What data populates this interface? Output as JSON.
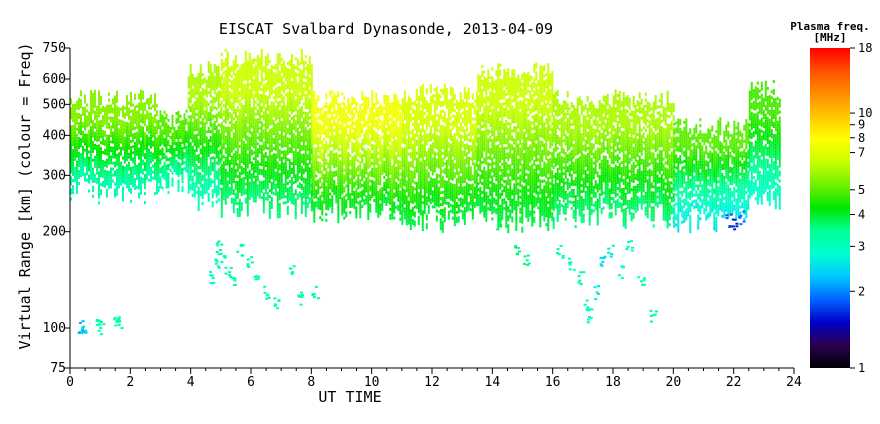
{
  "chart_data": {
    "type": "scatter",
    "title": "EISCAT Svalbard Dynasonde, 2013-04-09",
    "xlabel": "UT TIME",
    "ylabel": "Virtual Range [km] (colour = Freq)",
    "xlim": [
      0,
      24
    ],
    "ylim": [
      75,
      750
    ],
    "y_scale": "log",
    "x_ticks": [
      "0",
      "2",
      "4",
      "6",
      "8",
      "10",
      "12",
      "14",
      "16",
      "18",
      "20",
      "22",
      "24"
    ],
    "y_ticks": [
      "75",
      "100",
      "200",
      "300",
      "400",
      "500",
      "600",
      "750"
    ],
    "grid": false,
    "colorbar": {
      "label_line1": "Plasma freq.",
      "label_line2": "[MHz]",
      "range": [
        1,
        18
      ],
      "scale": "log",
      "ticks": [
        "1",
        "2",
        "3",
        "4",
        "5",
        "7",
        "8",
        "9",
        "10",
        "18"
      ],
      "stops": [
        "#000000",
        "#2a0050",
        "#0000c8",
        "#0064ff",
        "#00c8ff",
        "#00ffd2",
        "#00ff96",
        "#00e600",
        "#6ef000",
        "#c8ff00",
        "#ffff00",
        "#ffc800",
        "#ff8c00",
        "#ff5000",
        "#ff0000"
      ]
    },
    "series": [
      {
        "bands": [
          {
            "x0": 0.0,
            "x1": 2.9,
            "bottom": 270,
            "top": 520,
            "f_lo": 3.0,
            "f_hi": 5.5
          },
          {
            "x0": 2.9,
            "x1": 3.9,
            "bottom": 290,
            "top": 450,
            "f_lo": 3.0,
            "f_hi": 5.0
          },
          {
            "x0": 3.9,
            "x1": 5.0,
            "bottom": 255,
            "top": 640,
            "f_lo": 3.0,
            "f_hi": 6.0
          },
          {
            "x0": 5.0,
            "x1": 8.0,
            "bottom": 240,
            "top": 700,
            "f_lo": 3.5,
            "f_hi": 6.5
          },
          {
            "x0": 8.0,
            "x1": 11.0,
            "bottom": 230,
            "top": 520,
            "f_lo": 3.8,
            "f_hi": 7.5
          },
          {
            "x0": 11.0,
            "x1": 13.5,
            "bottom": 220,
            "top": 540,
            "f_lo": 3.8,
            "f_hi": 6.8
          },
          {
            "x0": 13.5,
            "x1": 16.0,
            "bottom": 220,
            "top": 630,
            "f_lo": 3.8,
            "f_hi": 6.5
          },
          {
            "x0": 16.0,
            "x1": 20.0,
            "bottom": 225,
            "top": 520,
            "f_lo": 3.5,
            "f_hi": 6.0
          },
          {
            "x0": 20.0,
            "x1": 22.5,
            "bottom": 220,
            "top": 430,
            "f_lo": 2.5,
            "f_hi": 5.0
          },
          {
            "x0": 22.5,
            "x1": 23.5,
            "bottom": 250,
            "top": 560,
            "f_lo": 2.8,
            "f_hi": 4.8
          }
        ]
      },
      {
        "points": [
          {
            "x": 0.3,
            "y": 102,
            "f": 2.2
          },
          {
            "x": 0.4,
            "y": 100,
            "f": 2.4
          },
          {
            "x": 0.9,
            "y": 103,
            "f": 3.0
          },
          {
            "x": 1.0,
            "y": 101,
            "f": 3.2
          },
          {
            "x": 1.5,
            "y": 104,
            "f": 3.0
          },
          {
            "x": 1.6,
            "y": 102,
            "f": 3.2
          },
          {
            "x": 4.7,
            "y": 145,
            "f": 3.0
          },
          {
            "x": 4.8,
            "y": 160,
            "f": 3.1
          },
          {
            "x": 4.9,
            "y": 180,
            "f": 3.2
          },
          {
            "x": 5.0,
            "y": 170,
            "f": 3.0
          },
          {
            "x": 5.2,
            "y": 150,
            "f": 3.3
          },
          {
            "x": 5.4,
            "y": 140,
            "f": 3.0
          },
          {
            "x": 5.6,
            "y": 175,
            "f": 3.2
          },
          {
            "x": 5.9,
            "y": 160,
            "f": 3.3
          },
          {
            "x": 6.1,
            "y": 140,
            "f": 3.0
          },
          {
            "x": 6.5,
            "y": 130,
            "f": 3.1
          },
          {
            "x": 6.8,
            "y": 120,
            "f": 3.2
          },
          {
            "x": 7.3,
            "y": 150,
            "f": 3.1
          },
          {
            "x": 7.6,
            "y": 125,
            "f": 3.2
          },
          {
            "x": 8.1,
            "y": 130,
            "f": 3.3
          },
          {
            "x": 14.2,
            "y": 210,
            "f": 3.8
          },
          {
            "x": 14.8,
            "y": 175,
            "f": 3.6
          },
          {
            "x": 15.1,
            "y": 165,
            "f": 3.5
          },
          {
            "x": 16.2,
            "y": 175,
            "f": 3.0
          },
          {
            "x": 16.6,
            "y": 160,
            "f": 3.1
          },
          {
            "x": 16.9,
            "y": 145,
            "f": 3.2
          },
          {
            "x": 17.1,
            "y": 120,
            "f": 3.0
          },
          {
            "x": 17.2,
            "y": 110,
            "f": 3.0
          },
          {
            "x": 17.4,
            "y": 130,
            "f": 2.6
          },
          {
            "x": 17.6,
            "y": 160,
            "f": 2.4
          },
          {
            "x": 17.9,
            "y": 175,
            "f": 2.6
          },
          {
            "x": 18.2,
            "y": 150,
            "f": 2.8
          },
          {
            "x": 18.5,
            "y": 180,
            "f": 3.0
          },
          {
            "x": 18.9,
            "y": 140,
            "f": 3.2
          },
          {
            "x": 19.3,
            "y": 110,
            "f": 3.4
          },
          {
            "x": 21.8,
            "y": 218,
            "f": 1.8
          },
          {
            "x": 22.0,
            "y": 212,
            "f": 1.6
          },
          {
            "x": 22.2,
            "y": 222,
            "f": 1.9
          }
        ]
      }
    ]
  }
}
